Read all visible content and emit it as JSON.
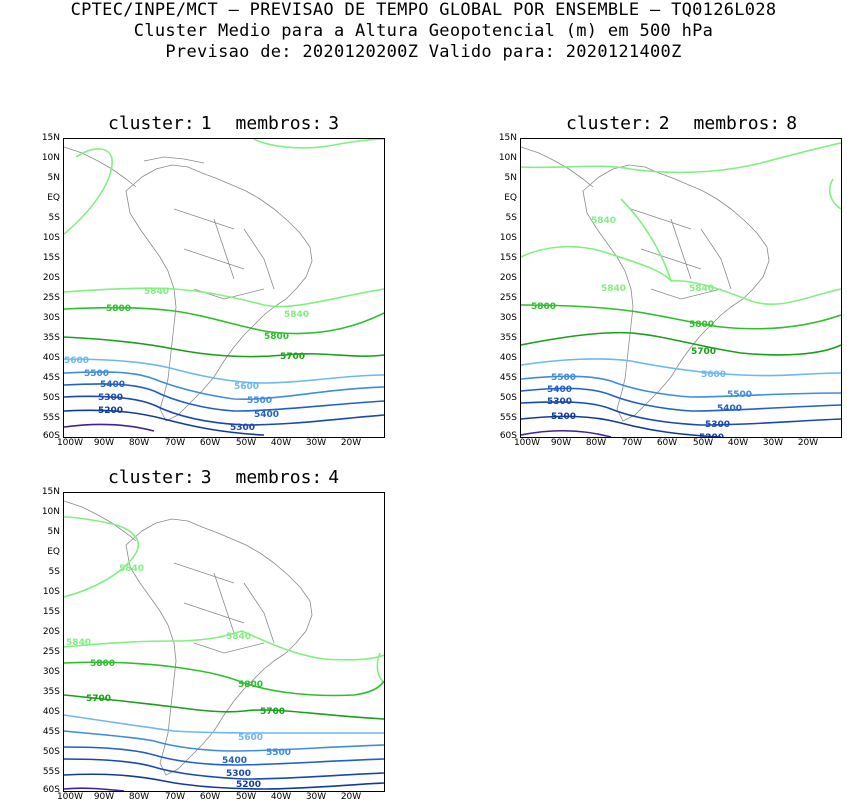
{
  "header": {
    "line1": "CPTEC/INPE/MCT – PREVISAO DE TEMPO GLOBAL POR ENSEMBLE – TQ0126L028",
    "line2": "Cluster Medio para a Altura Geopotencial (m) em 500 hPa",
    "line3": "Previsao de: 2020120200Z    Valido para: 2020121400Z"
  },
  "axes": {
    "lat_ticks": [
      "15N",
      "10N",
      "5N",
      "EQ",
      "5S",
      "10S",
      "15S",
      "20S",
      "25S",
      "30S",
      "35S",
      "40S",
      "45S",
      "50S",
      "55S",
      "60S"
    ],
    "lon_ticks": [
      "100W",
      "90W",
      "80W",
      "70W",
      "60W",
      "50W",
      "40W",
      "30W",
      "20W"
    ]
  },
  "colors": {
    "c5840": "#80f080",
    "c5800": "#2cc02c",
    "c5700": "#18a018",
    "c5600": "#6cb8f0",
    "c5500": "#3c8ce0",
    "c5400": "#2060c8",
    "c5300": "#1848b0",
    "c5200": "#103c98",
    "c5100": "#4020a0",
    "coast": "#8a8a8a"
  },
  "panels": [
    {
      "cluster_label": "cluster:",
      "cluster_num": "1",
      "members_label": "membros:",
      "members_num": "3",
      "contours": [
        "5840",
        "5840",
        "5800",
        "5800",
        "5700",
        "5600",
        "5600",
        "5500",
        "5500",
        "5400",
        "5400",
        "5300",
        "5300",
        "5200"
      ]
    },
    {
      "cluster_label": "cluster:",
      "cluster_num": "2",
      "members_label": "membros:",
      "members_num": "8",
      "contours": [
        "5840",
        "5840",
        "5840",
        "5800",
        "5800",
        "5700",
        "5600",
        "5500",
        "5500",
        "5400",
        "5400",
        "5300",
        "5300",
        "5200",
        "5200"
      ]
    },
    {
      "cluster_label": "cluster:",
      "cluster_num": "3",
      "members_label": "membros:",
      "members_num": "4",
      "contours": [
        "5840",
        "5840",
        "5840",
        "5800",
        "5800",
        "5700",
        "5700",
        "5600",
        "5500",
        "5400",
        "5300",
        "5200"
      ]
    }
  ]
}
